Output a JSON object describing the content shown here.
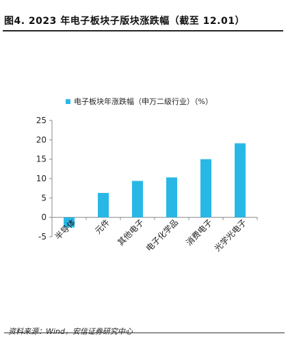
{
  "figure": {
    "title": "图4. 2023 年电子板块子版块涨跌幅（截至 12.01）",
    "source": "资料来源：Wind，安信证券研究中心"
  },
  "colors": {
    "bar": "#29b8e6",
    "axis": "#888888",
    "text": "#222222"
  },
  "chart_data": {
    "type": "bar",
    "title": "",
    "xlabel": "",
    "ylabel": "",
    "categories": [
      "半导体",
      "元件",
      "其他电子",
      "电子化学品",
      "消费电子",
      "光学光电子"
    ],
    "series": [
      {
        "name": "电子板块年涨跌幅（申万二级行业）（%）",
        "values": [
          -2.6,
          6.3,
          9.4,
          10.3,
          15.0,
          19.1
        ]
      }
    ],
    "ylim": [
      -5,
      25
    ],
    "yticks": [
      -5,
      0,
      5,
      10,
      15,
      20,
      25
    ],
    "grid": false,
    "legend": "top-left"
  }
}
